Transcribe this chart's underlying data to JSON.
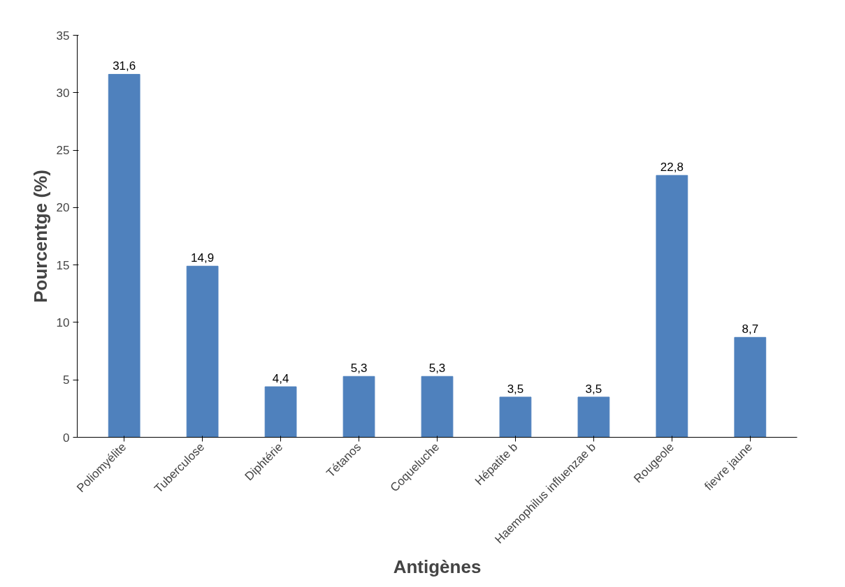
{
  "chart_data": {
    "type": "bar",
    "xlabel": "Antigènes",
    "ylabel": "Pourcentge (%)",
    "categories": [
      "Poliomyélite",
      "Tuberculose",
      "Diphtérie",
      "Tétanos",
      "Coqueluche",
      "Hépatite b",
      "Haemophilus influenzae b",
      "Rougeole",
      "fievre jaune"
    ],
    "values": [
      31.6,
      14.9,
      4.4,
      5.3,
      5.3,
      3.5,
      3.5,
      22.8,
      8.7
    ],
    "value_labels": [
      "31,6",
      "14,9",
      "4,4",
      "5,3",
      "5,3",
      "3,5",
      "3,5",
      "22,8",
      "8,7"
    ],
    "color": "#4f81bd",
    "ylim": [
      0,
      35
    ],
    "yticks": [
      0,
      5,
      10,
      15,
      20,
      25,
      30,
      35
    ],
    "grid": false
  }
}
